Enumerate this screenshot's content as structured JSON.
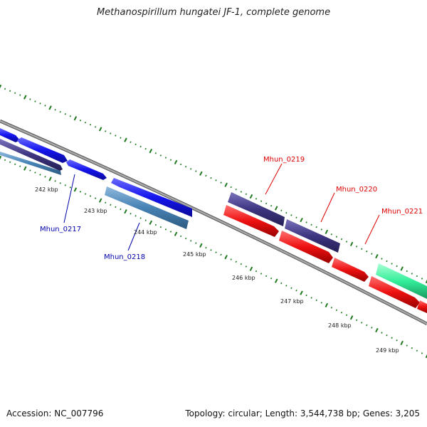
{
  "title": "Methanospirillum hungatei JF-1, complete genome",
  "footer": {
    "accession": "Accession: NC_007796",
    "summary": "Topology: circular; Length: 3,544,738 bp; Genes: 3,205"
  },
  "colors": {
    "backbone": "#8c8c8c",
    "tick": "#1f7a1f",
    "blue_gene": "#1414ee",
    "steel_gene": "#4682b4",
    "slate_gene": "#3d3580",
    "red_gene": "#ee1111",
    "green_gene": "#33ee99",
    "blue_label": "#0000aa",
    "red_label": "#dd0000"
  },
  "ticks": [
    "242 kbp",
    "243 kbp",
    "244 kbp",
    "245 kbp",
    "246 kbp",
    "247 kbp",
    "248 kbp",
    "249 kbp"
  ],
  "gene_labels": [
    {
      "text": "Mhun_0217",
      "color": "blue"
    },
    {
      "text": "Mhun_0218",
      "color": "blue"
    },
    {
      "text": "Mhun_0219",
      "color": "red"
    },
    {
      "text": "Mhun_0220",
      "color": "red"
    },
    {
      "text": "Mhun_0221",
      "color": "red"
    }
  ]
}
